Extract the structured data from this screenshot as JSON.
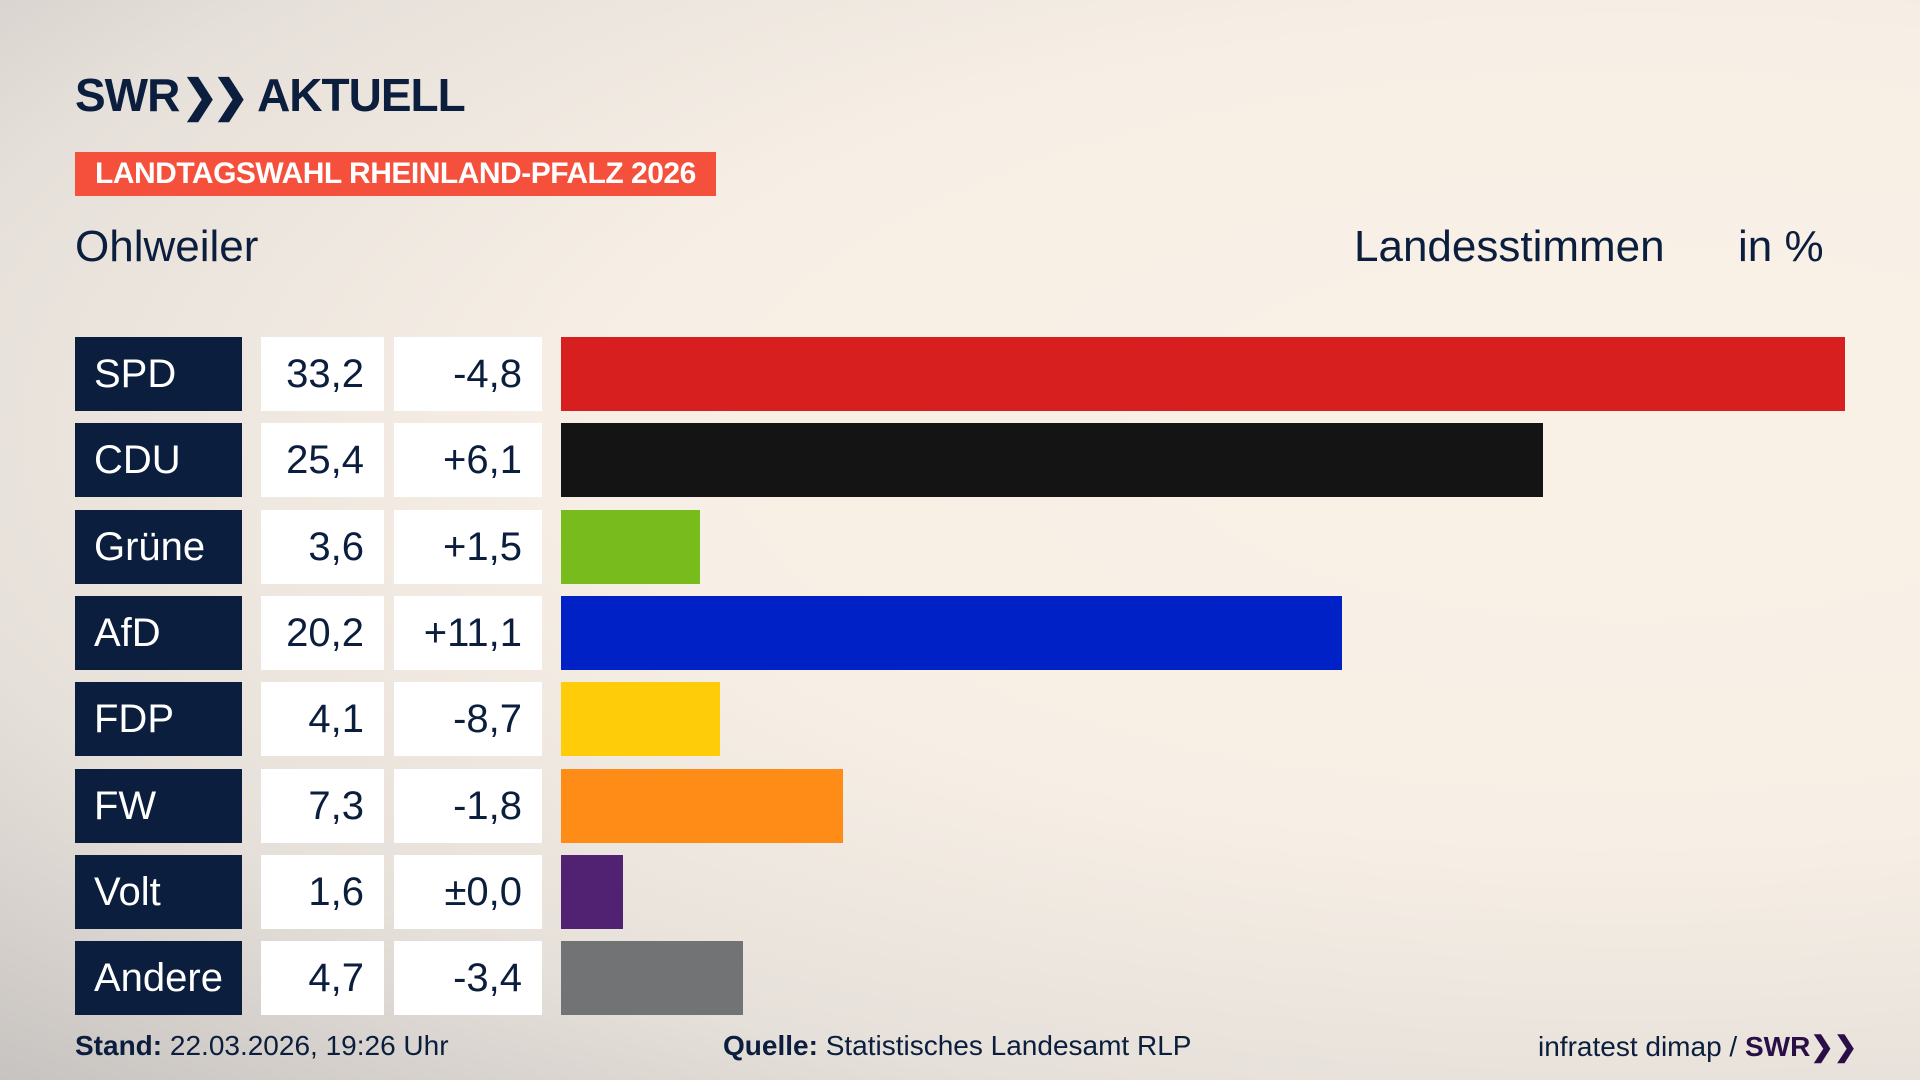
{
  "brand": {
    "logo_text": "SWR",
    "logo_sub": "AKTUELL"
  },
  "banner": "LANDTAGSWAHL RHEINLAND-PFALZ 2026",
  "place": "Ohlweiler",
  "header": {
    "vote_type": "Landesstimmen",
    "unit": "in %"
  },
  "chart_data": {
    "type": "bar",
    "orientation": "horizontal",
    "categories": [
      "SPD",
      "CDU",
      "Grüne",
      "AfD",
      "FDP",
      "FW",
      "Volt",
      "Andere"
    ],
    "values": [
      33.2,
      25.4,
      3.6,
      20.2,
      4.1,
      7.3,
      1.6,
      4.7
    ],
    "value_labels": [
      "33,2",
      "25,4",
      "3,6",
      "20,2",
      "4,1",
      "7,3",
      "1,6",
      "4,7"
    ],
    "diff_labels": [
      "-4,8",
      "+6,1",
      "+1,5",
      "+11,1",
      "-8,7",
      "-1,8",
      "±0,0",
      "-3,4"
    ],
    "diffs": [
      -4.8,
      6.1,
      1.5,
      11.1,
      -8.7,
      -1.8,
      0.0,
      -3.4
    ],
    "colors": [
      "#d71f1f",
      "#141414",
      "#78bb1d",
      "#0021c6",
      "#ffcc0a",
      "#ff8c17",
      "#512172",
      "#727374"
    ]
  },
  "footer": {
    "stand_label": "Stand:",
    "stand_value": "22.03.2026, 19:26 Uhr",
    "quelle_label": "Quelle:",
    "quelle_value": "Statistisches Landesamt RLP",
    "credit": "infratest dimap /",
    "credit_logo": "SWR"
  }
}
